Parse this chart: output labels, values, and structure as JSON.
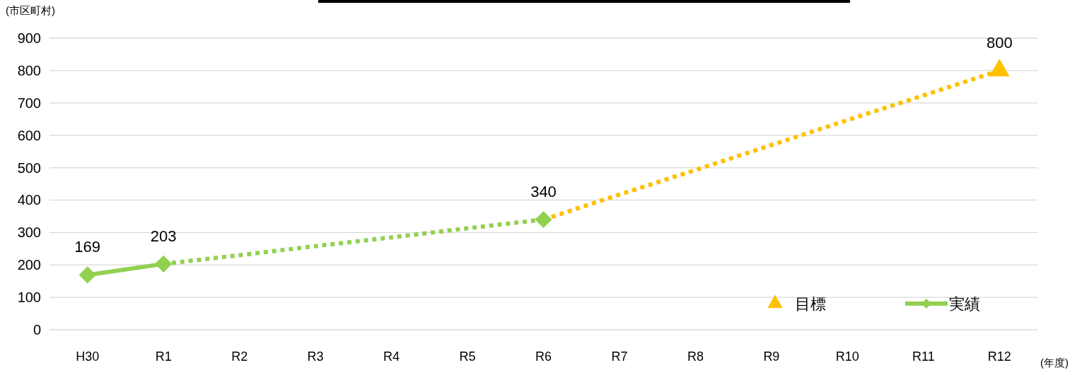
{
  "chart_data": {
    "type": "line",
    "ylabel": "(市区町村)",
    "xlabel": "(年度)",
    "categories": [
      "H30",
      "R1",
      "R2",
      "R3",
      "R4",
      "R5",
      "R6",
      "R7",
      "R8",
      "R9",
      "R10",
      "R11",
      "R12"
    ],
    "ylim": [
      0,
      900
    ],
    "yticks": [
      0,
      100,
      200,
      300,
      400,
      500,
      600,
      700,
      800,
      900
    ],
    "grid": "y",
    "legend": "bottom right",
    "series": [
      {
        "color": "#92d050",
        "line_style": "dotted",
        "marker": "none",
        "values": [
          null,
          203,
          230,
          258,
          285,
          313,
          340,
          null,
          null,
          null,
          null,
          null,
          null
        ]
      },
      {
        "color": "#ffc000",
        "line_style": "dotted",
        "marker": "none",
        "values": [
          null,
          null,
          null,
          null,
          null,
          null,
          340,
          417,
          493,
          570,
          647,
          723,
          800
        ]
      },
      {
        "name": "目標",
        "type": "scatter",
        "color": "#ffc000",
        "marker": "triangle",
        "values": [
          null,
          null,
          null,
          null,
          null,
          null,
          null,
          null,
          null,
          null,
          null,
          null,
          800
        ],
        "value_labels": [
          null,
          null,
          null,
          null,
          null,
          null,
          null,
          null,
          null,
          null,
          null,
          null,
          "800"
        ]
      },
      {
        "name": "実績",
        "color": "#92d050",
        "line_style": "solid",
        "marker": "diamond",
        "values": [
          169,
          203,
          null,
          null,
          null,
          null,
          340,
          null,
          null,
          null,
          null,
          null,
          null
        ],
        "value_labels": [
          "169",
          "203",
          null,
          null,
          null,
          null,
          "340",
          null,
          null,
          null,
          null,
          null,
          null
        ]
      }
    ]
  }
}
